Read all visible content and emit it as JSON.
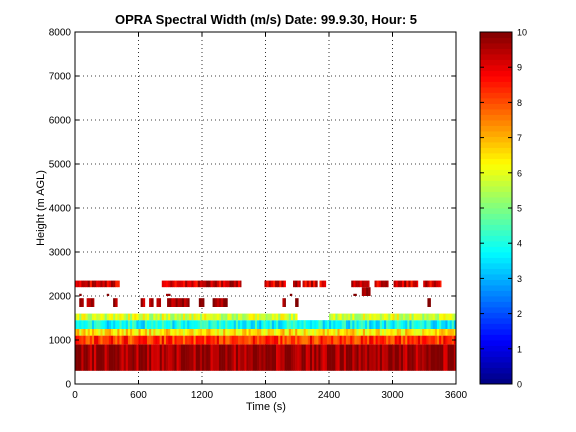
{
  "chart_data": {
    "type": "heatmap",
    "title": "OPRA Spectral Width (m/s)  Date: 99.9.30, Hour: 5",
    "xlabel": "Time (s)",
    "ylabel": "Height (m AGL)",
    "xlim": [
      0,
      3600
    ],
    "ylim": [
      0,
      8000
    ],
    "x_ticks": [
      "0",
      "600",
      "1200",
      "1800",
      "2400",
      "3000",
      "3600"
    ],
    "y_ticks": [
      "0",
      "1000",
      "2000",
      "3000",
      "4000",
      "5000",
      "6000",
      "7000",
      "8000"
    ],
    "grid": true,
    "colorbar": {
      "colormap": "jet",
      "range": [
        0,
        10
      ],
      "ticks": [
        "0",
        "1",
        "2",
        "3",
        "4",
        "5",
        "6",
        "7",
        "8",
        "9",
        "10"
      ]
    },
    "bands": [
      {
        "y_range": [
          300,
          900
        ],
        "mean_value": 9.8,
        "segments": [
          [
            0,
            3600
          ]
        ]
      },
      {
        "y_range": [
          900,
          1100
        ],
        "mean_value": 8.3,
        "segments": [
          [
            0,
            3600
          ]
        ]
      },
      {
        "y_range": [
          1100,
          1250
        ],
        "mean_value": 6.5,
        "segments": [
          [
            0,
            3600
          ]
        ]
      },
      {
        "y_range": [
          1250,
          1450
        ],
        "mean_value": 3.8,
        "segments": [
          [
            0,
            3600
          ]
        ]
      },
      {
        "y_range": [
          1450,
          1600
        ],
        "mean_value": 5.8,
        "segments": [
          [
            0,
            2100
          ],
          [
            2400,
            3600
          ]
        ]
      },
      {
        "y_range": [
          1750,
          1950
        ],
        "mean_value": 9.9,
        "segments": [
          [
            40,
            80
          ],
          [
            110,
            180
          ],
          [
            360,
            400
          ],
          [
            620,
            660
          ],
          [
            700,
            740
          ],
          [
            770,
            810
          ],
          [
            870,
            1080
          ],
          [
            1170,
            1220
          ],
          [
            1300,
            1440
          ],
          [
            1960,
            1990
          ],
          [
            2080,
            2110
          ],
          [
            3330,
            3360
          ]
        ]
      },
      {
        "y_range": [
          2000,
          2050
        ],
        "mean_value": 9.9,
        "segments": [
          [
            40,
            60
          ],
          [
            300,
            320
          ],
          [
            860,
            900
          ],
          [
            2030,
            2050
          ],
          [
            2630,
            2660
          ]
        ]
      },
      {
        "y_range": [
          2000,
          2200
        ],
        "mean_value": 9.9,
        "segments": [
          [
            2710,
            2790
          ]
        ]
      },
      {
        "y_range": [
          2200,
          2350
        ],
        "mean_value": 9.2,
        "segments": [
          [
            0,
            420
          ],
          [
            820,
            1570
          ],
          [
            1790,
            1990
          ],
          [
            2060,
            2130
          ],
          [
            2150,
            2290
          ],
          [
            2310,
            2370
          ],
          [
            2610,
            2780
          ],
          [
            2830,
            2960
          ],
          [
            3010,
            3240
          ],
          [
            3290,
            3460
          ]
        ]
      }
    ]
  }
}
